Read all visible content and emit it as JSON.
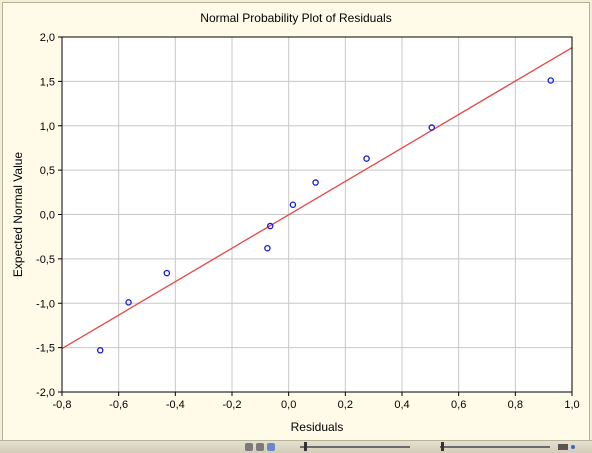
{
  "chart_data": {
    "type": "scatter",
    "title": "Normal Probability Plot of Residuals",
    "xlabel": "Residuals",
    "ylabel": "Expected Normal Value",
    "xlim": [
      -0.8,
      1.0
    ],
    "ylim": [
      -2.0,
      2.0
    ],
    "xticks": [
      "-0,8",
      "-0,6",
      "-0,4",
      "-0,2",
      "0,0",
      "0,2",
      "0,4",
      "0,6",
      "0,8",
      "1,0"
    ],
    "yticks": [
      "2,0",
      "1,5",
      "1,0",
      "0,5",
      "0,0",
      "-0,5",
      "-1,0",
      "-1,5",
      "-2,0"
    ],
    "grid": true,
    "points": [
      {
        "x": -0.665,
        "y": -1.53
      },
      {
        "x": -0.565,
        "y": -0.99
      },
      {
        "x": -0.43,
        "y": -0.66
      },
      {
        "x": -0.075,
        "y": -0.38
      },
      {
        "x": -0.065,
        "y": -0.13
      },
      {
        "x": 0.015,
        "y": 0.11
      },
      {
        "x": 0.095,
        "y": 0.36
      },
      {
        "x": 0.275,
        "y": 0.63
      },
      {
        "x": 0.505,
        "y": 0.98
      },
      {
        "x": 0.925,
        "y": 1.51
      }
    ],
    "fit_line": {
      "x": [
        -0.8,
        1.0
      ],
      "y": [
        -1.51,
        1.88
      ]
    },
    "colors": {
      "points": "#1717d6",
      "fit_line": "#e84545",
      "grid": "#c8c8c8",
      "plot_bg": "#ffffff"
    }
  },
  "statusbar": {
    "icons": [
      "pointer-icon",
      "magnifier-icon",
      "brush-icon",
      "zoom-slider",
      "scroll-slider",
      "layout-icon",
      "collapse-icon"
    ]
  }
}
